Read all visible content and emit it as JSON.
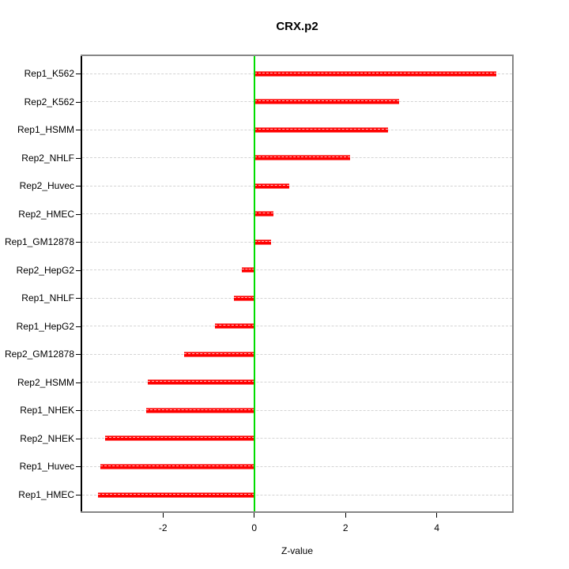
{
  "chart_data": {
    "type": "bar",
    "orientation": "horizontal",
    "title": "CRX.p2",
    "xlabel": "Z-value",
    "categories": [
      "Rep1_K562",
      "Rep2_K562",
      "Rep1_HSMM",
      "Rep2_NHLF",
      "Rep2_Huvec",
      "Rep2_HMEC",
      "Rep1_GM12878",
      "Rep2_HepG2",
      "Rep1_NHLF",
      "Rep1_HepG2",
      "Rep2_GM12878",
      "Rep2_HSMM",
      "Rep1_NHEK",
      "Rep2_NHEK",
      "Rep1_Huvec",
      "Rep1_HMEC"
    ],
    "values": [
      5.3,
      3.18,
      2.93,
      2.1,
      0.77,
      0.42,
      0.37,
      -0.28,
      -0.45,
      -0.86,
      -1.53,
      -2.33,
      -2.37,
      -3.26,
      -3.37,
      -3.43
    ],
    "xlim": [
      -3.77,
      5.65
    ],
    "xticks": [
      -2,
      0,
      2,
      4
    ],
    "zero_line_at": 0,
    "grid": true,
    "legend": "none",
    "colors": {
      "bar": "#ff0000",
      "bar_edge": "#ff6a6a",
      "zero_line": "#00dd00",
      "grid": "#d4d4d4",
      "box": "#878787",
      "axis": "#000000",
      "text": "#000000"
    }
  }
}
